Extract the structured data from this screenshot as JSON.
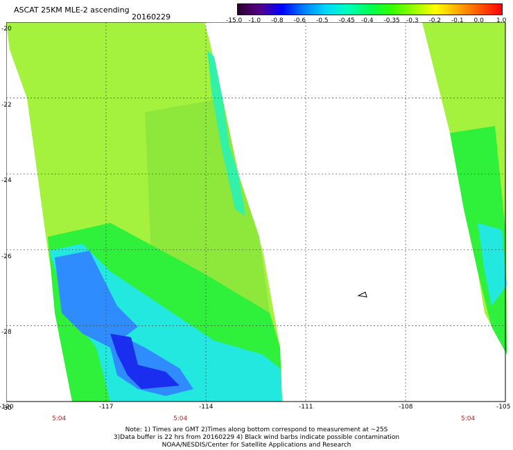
{
  "header": {
    "title": "ASCAT 25KM MLE-2 ascending",
    "date": "20160229"
  },
  "colorbar": {
    "labels": [
      "-15.0",
      "-1.0",
      "-0.8",
      "-0.6",
      "-0.5",
      "-0.45",
      "-0.4",
      "-0.35",
      "-0.3",
      "-0.2",
      "-0.1",
      "0.0",
      "1.0"
    ],
    "colors": [
      "#2a0030",
      "#550088",
      "#0000ff",
      "#007fff",
      "#00d8ff",
      "#00ffbb",
      "#00ff55",
      "#33ff00",
      "#99ff00",
      "#ffff00",
      "#ffaa00",
      "#ff5500",
      "#ff0000"
    ]
  },
  "axes": {
    "y_labels": [
      "-20",
      "-22",
      "-24",
      "-26",
      "-28",
      "-30"
    ],
    "x_labels": [
      "-120",
      "-117",
      "-114",
      "-111",
      "-108",
      "-105"
    ]
  },
  "time_labels": [
    "5:04",
    "5:04",
    "5:04"
  ],
  "notes": [
    "Note: 1) Times are GMT 2)Times along bottom correspond to measurement at ~25S",
    "3)Data buffer is 22 hrs from 20160229 4) Black wind barbs indicate possible contamination",
    "NOAA/NESDIS/Center for Satellite Applications and Research"
  ]
}
